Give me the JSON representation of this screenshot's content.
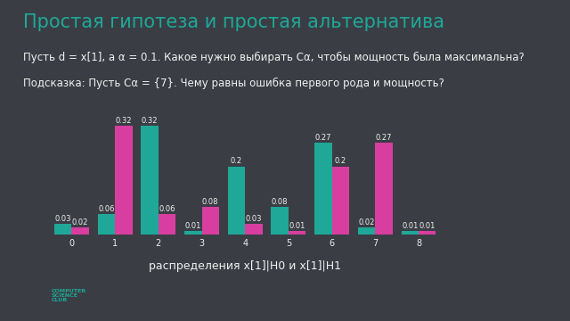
{
  "slide": {
    "title": "Простая гипотеза и простая альтернатива",
    "text": [
      "Пусть d = x[1], а α = 0.1. Какое нужно выбирать Cα, чтобы мощность была максимальна?",
      "Подсказка: Пусть Cα = {7}. Чему равны ошибка первого рода и мощность?"
    ],
    "logo": "COMPUTER\nSCIENCE\nCLUB"
  },
  "chart_data": {
    "type": "bar",
    "x_label": "распределения x[1]|H0 и x[1]|H1",
    "categories": [
      "0",
      "1",
      "2",
      "3",
      "4",
      "5",
      "6",
      "7",
      "8"
    ],
    "series": [
      {
        "color": "#1fa898",
        "values": [
          0.03,
          0.06,
          0.32,
          0.01,
          0.2,
          0.08,
          0.27,
          0.02,
          0.01
        ]
      },
      {
        "color": "#d83e9f",
        "values": [
          0.02,
          0.32,
          0.06,
          0.08,
          0.03,
          0.01,
          0.2,
          0.27,
          0.01
        ]
      }
    ],
    "ylim": [
      0,
      0.36
    ],
    "yticks": [],
    "tick_labels": "x",
    "data_labels": true,
    "grid": false
  }
}
